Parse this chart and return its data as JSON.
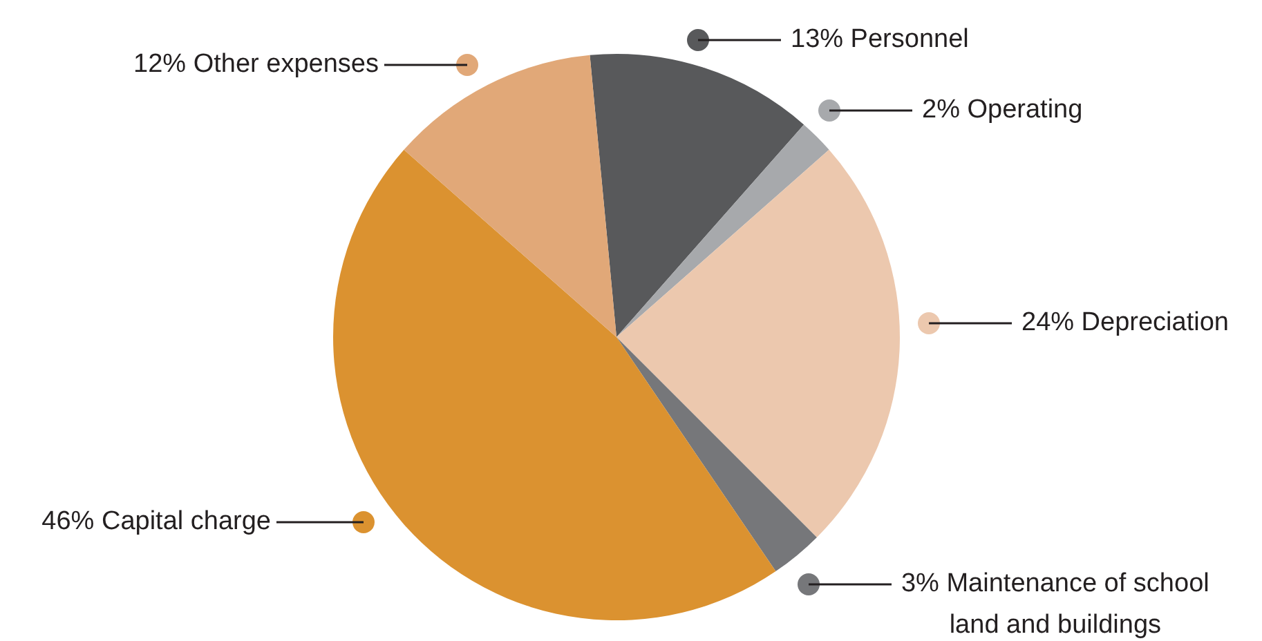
{
  "chart_data": {
    "type": "pie",
    "categories": [
      "Personnel",
      "Operating",
      "Depreciation",
      "Maintenance of school land and buildings",
      "Capital charge",
      "Other expenses"
    ],
    "values": [
      13,
      2,
      24,
      3,
      46,
      12
    ],
    "value_labels": [
      "13%",
      "2%",
      "24%",
      "3%",
      "46%",
      "12%"
    ],
    "colors": [
      "#58595b",
      "#a7a9ac",
      "#ecc8ae",
      "#76777a",
      "#db9230",
      "#e1a878"
    ],
    "legend": false
  }
}
